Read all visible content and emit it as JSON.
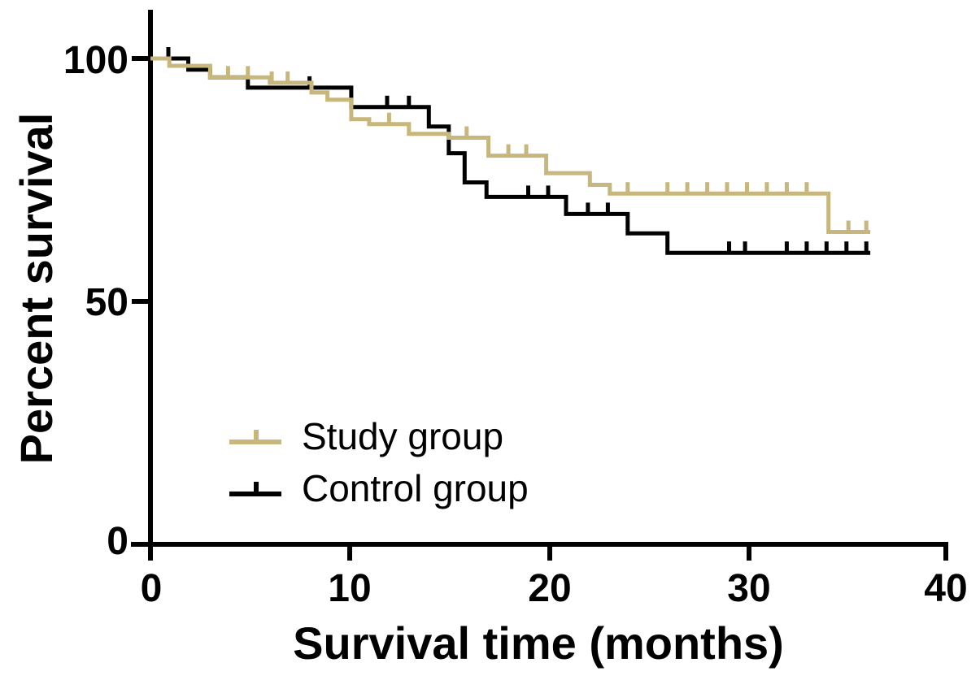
{
  "chart_data": {
    "type": "line",
    "subtype": "kaplan-meier-step-curve",
    "title": "",
    "xlabel": "Survival time (months)",
    "ylabel": "Percent survival",
    "xlim": [
      0,
      40
    ],
    "ylim": [
      0,
      100
    ],
    "x_tick_values": [
      0,
      10,
      20,
      30,
      40
    ],
    "y_tick_values": [
      100,
      50,
      0
    ],
    "grid": false,
    "legend_position": "inside-middle-left",
    "series": [
      {
        "name": "Control group",
        "color": "#000000",
        "steps": [
          [
            0,
            100
          ],
          [
            1.9,
            97.7
          ],
          [
            3.0,
            96.1
          ],
          [
            4.9,
            94.0
          ],
          [
            10.1,
            90.0
          ],
          [
            14.0,
            86.0
          ],
          [
            15.0,
            80.5
          ],
          [
            15.8,
            74.5
          ],
          [
            16.9,
            71.5
          ],
          [
            20.9,
            68.0
          ],
          [
            24.0,
            64.0
          ],
          [
            26.0,
            60.0
          ]
        ],
        "censor_ticks": [
          0.9,
          8.0,
          11.9,
          13.0,
          19.0,
          20.0,
          22.0,
          23.0,
          29.1,
          29.9,
          32.0,
          33.0,
          34.0,
          35.0,
          36.0
        ],
        "end_time": 36.2
      },
      {
        "name": "Study group",
        "color": "#C7B77C",
        "steps": [
          [
            0,
            100
          ],
          [
            0.95,
            98.5
          ],
          [
            3.0,
            96.1
          ],
          [
            6.0,
            95.0
          ],
          [
            8.1,
            93.0
          ],
          [
            8.9,
            91.5
          ],
          [
            10.1,
            87.5
          ],
          [
            11.0,
            86.5
          ],
          [
            13.0,
            84.5
          ],
          [
            15.0,
            83.7
          ],
          [
            17.0,
            80.0
          ],
          [
            19.9,
            76.4
          ],
          [
            22.1,
            74.0
          ],
          [
            23.1,
            72.2
          ],
          [
            34.1,
            64.3
          ]
        ],
        "censor_ticks": [
          3.9,
          4.9,
          6.1,
          6.9,
          12.0,
          15.9,
          18.0,
          18.9,
          24.0,
          26.0,
          27.0,
          28.0,
          29.0,
          30.0,
          31.0,
          32.0,
          33.0,
          35.1,
          36.0
        ],
        "end_time": 36.2
      }
    ]
  },
  "axes": {
    "x": {
      "label": "Survival time (months)",
      "ticks": [
        "0",
        "10",
        "20",
        "30",
        "40"
      ]
    },
    "y": {
      "label": "Percent survival",
      "ticks": [
        "100",
        "50",
        "0"
      ]
    }
  },
  "legend": {
    "items": [
      {
        "label": "Study group",
        "color": "#C7B77C"
      },
      {
        "label": "Control group",
        "color": "#000000"
      }
    ]
  }
}
